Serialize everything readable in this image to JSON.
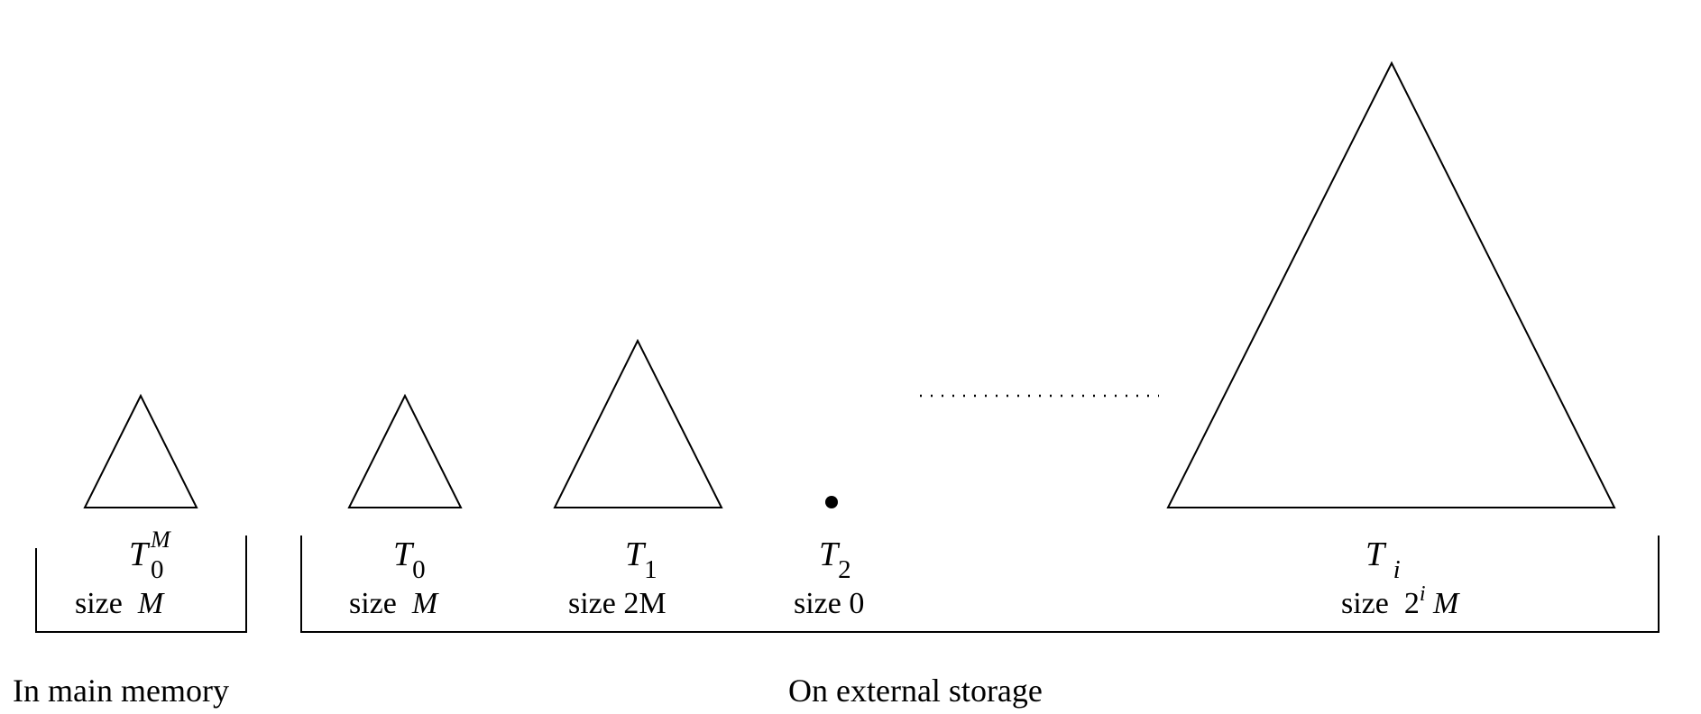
{
  "trees": [
    {
      "id": "t0m",
      "name": "T",
      "sup": "M",
      "sub": "0",
      "size_prefix": "size",
      "size_value": "M"
    },
    {
      "id": "t0",
      "name": "T",
      "sub": "0",
      "size_prefix": "size",
      "size_value": "M"
    },
    {
      "id": "t1",
      "name": "T",
      "sub": "1",
      "size_prefix": "size",
      "size_value": "2M"
    },
    {
      "id": "t2",
      "name": "T",
      "sub": "2",
      "size_prefix": "size",
      "size_value": "0"
    },
    {
      "id": "ti",
      "name": "T",
      "sub": "i",
      "size_prefix": "size",
      "size_base": "2",
      "size_exp": "i",
      "size_unit": "M"
    }
  ],
  "groups": {
    "main_memory": "In main memory",
    "external_storage": "On external storage"
  }
}
